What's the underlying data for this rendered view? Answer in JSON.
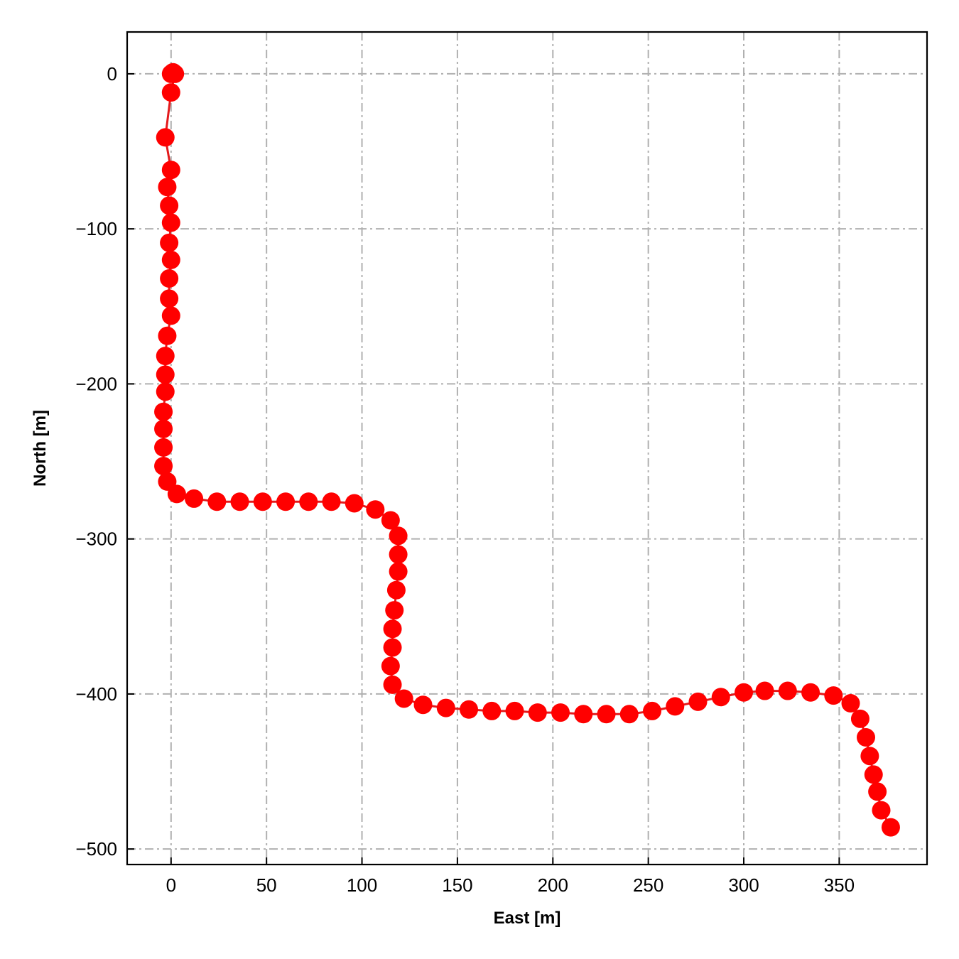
{
  "chart_data": {
    "type": "line",
    "title": "",
    "xlabel": "East [m]",
    "ylabel": "North [m]",
    "xlim": [
      -23,
      396
    ],
    "ylim": [
      -510,
      27
    ],
    "x_ticks": [
      0,
      50,
      100,
      150,
      200,
      250,
      300,
      350
    ],
    "y_ticks": [
      0,
      -100,
      -200,
      -300,
      -400,
      -500
    ],
    "x_tick_labels": [
      "0",
      "50",
      "100",
      "150",
      "200",
      "250",
      "300",
      "350"
    ],
    "y_tick_labels": [
      "0",
      "−100",
      "−200",
      "−300",
      "−400",
      "−500"
    ],
    "grid": true,
    "grid_style": "dash-dot",
    "legend": "none",
    "colors": {
      "series": "#ff0000",
      "line": "#e31a1c",
      "grid": "#b0b0b0",
      "axes": "#000000"
    },
    "series": [
      {
        "marker": "circle",
        "points": [
          [
            0,
            0
          ],
          [
            1,
            1
          ],
          [
            2,
            0
          ],
          [
            0,
            -12
          ],
          [
            -3,
            -41
          ],
          [
            0,
            -62
          ],
          [
            -2,
            -73
          ],
          [
            -1,
            -85
          ],
          [
            0,
            -96
          ],
          [
            -1,
            -109
          ],
          [
            0,
            -120
          ],
          [
            -1,
            -132
          ],
          [
            -1,
            -145
          ],
          [
            0,
            -156
          ],
          [
            -2,
            -169
          ],
          [
            -3,
            -182
          ],
          [
            -3,
            -194
          ],
          [
            -3,
            -205
          ],
          [
            -4,
            -218
          ],
          [
            -4,
            -229
          ],
          [
            -4,
            -241
          ],
          [
            -4,
            -253
          ],
          [
            -2,
            -263
          ],
          [
            3,
            -271
          ],
          [
            12,
            -274
          ],
          [
            24,
            -276
          ],
          [
            36,
            -276
          ],
          [
            48,
            -276
          ],
          [
            60,
            -276
          ],
          [
            72,
            -276
          ],
          [
            84,
            -276
          ],
          [
            96,
            -277
          ],
          [
            107,
            -281
          ],
          [
            115,
            -288
          ],
          [
            119,
            -298
          ],
          [
            119,
            -310
          ],
          [
            119,
            -321
          ],
          [
            118,
            -333
          ],
          [
            117,
            -346
          ],
          [
            116,
            -358
          ],
          [
            116,
            -370
          ],
          [
            115,
            -382
          ],
          [
            116,
            -394
          ],
          [
            122,
            -403
          ],
          [
            132,
            -407
          ],
          [
            144,
            -409
          ],
          [
            156,
            -410
          ],
          [
            168,
            -411
          ],
          [
            180,
            -411
          ],
          [
            192,
            -412
          ],
          [
            204,
            -412
          ],
          [
            216,
            -413
          ],
          [
            228,
            -413
          ],
          [
            240,
            -413
          ],
          [
            252,
            -411
          ],
          [
            264,
            -408
          ],
          [
            276,
            -405
          ],
          [
            288,
            -402
          ],
          [
            300,
            -399
          ],
          [
            311,
            -398
          ],
          [
            323,
            -398
          ],
          [
            335,
            -399
          ],
          [
            347,
            -401
          ],
          [
            356,
            -406
          ],
          [
            361,
            -416
          ],
          [
            364,
            -428
          ],
          [
            366,
            -440
          ],
          [
            368,
            -452
          ],
          [
            370,
            -463
          ],
          [
            372,
            -475
          ],
          [
            377,
            -486
          ]
        ]
      }
    ]
  }
}
